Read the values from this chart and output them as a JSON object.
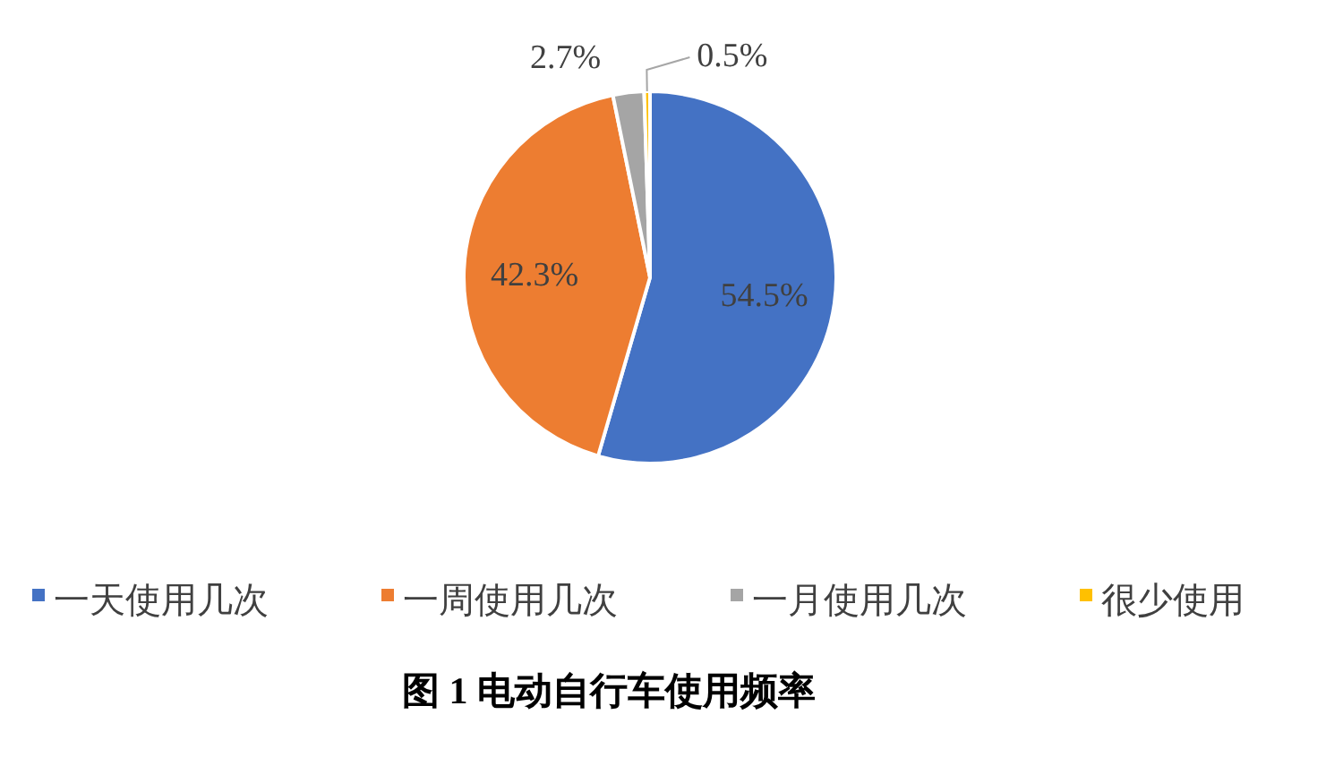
{
  "chart_data": {
    "type": "pie",
    "title": "图 1 电动自行车使用频率",
    "categories": [
      "一天使用几次",
      "一周使用几次",
      "一月使用几次",
      "很少使用"
    ],
    "values": [
      54.5,
      42.3,
      2.7,
      0.5
    ],
    "colors": [
      "#4472c4",
      "#ed7d31",
      "#a5a5a5",
      "#ffc000"
    ],
    "value_labels": [
      "54.5%",
      "42.3%",
      "2.7%",
      "0.5%"
    ],
    "legend": "bottom"
  }
}
